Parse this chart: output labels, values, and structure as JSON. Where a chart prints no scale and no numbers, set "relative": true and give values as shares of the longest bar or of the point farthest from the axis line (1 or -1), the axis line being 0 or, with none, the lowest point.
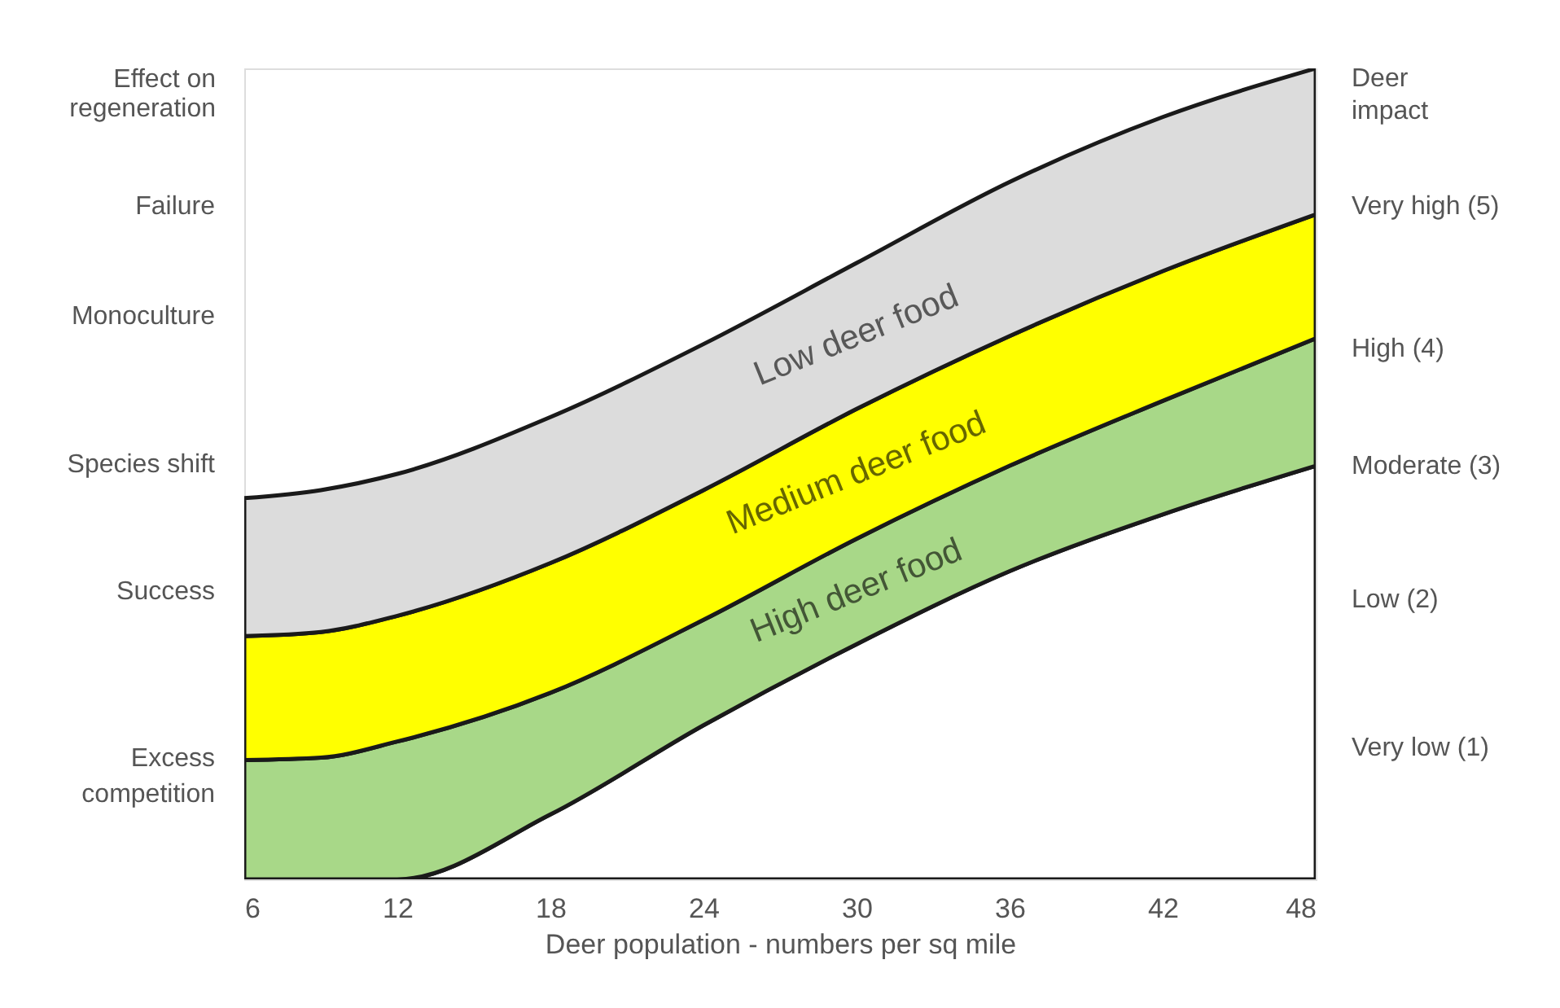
{
  "chart_data": {
    "type": "area",
    "stacked": true,
    "relative": true,
    "xlabel": "Deer population - numbers per sq mile",
    "ylabel": "Effect on\nregeneration",
    "y2label": "Deer\nimpact",
    "x": [
      6,
      9,
      12,
      18,
      24,
      30,
      36,
      42,
      48
    ],
    "series": [
      {
        "color": "#ffffff",
        "values": [
          0,
          0,
          0,
          0.08,
          0.19,
          0.29,
          0.38,
          0.45,
          0.51
        ]
      },
      {
        "name": "High deer food",
        "color": "#a8d888",
        "values": [
          0.147,
          0.15,
          0.17,
          0.15,
          0.13,
          0.13,
          0.13,
          0.14,
          0.157
        ]
      },
      {
        "name": "Medium deer food",
        "color": "#ffff00",
        "values": [
          0.153,
          0.155,
          0.155,
          0.16,
          0.16,
          0.16,
          0.16,
          0.16,
          0.153
        ]
      },
      {
        "name": "Low deer food",
        "color": "#dcdcdc",
        "values": [
          0.17,
          0.175,
          0.175,
          0.18,
          0.18,
          0.18,
          0.19,
          0.19,
          0.18
        ]
      }
    ],
    "xlim": [
      6,
      48
    ],
    "xticks": [
      6,
      12,
      18,
      24,
      30,
      36,
      42,
      48
    ],
    "annotations": [
      "Failure",
      "Monoculture",
      "Species shift",
      "Success",
      "Excess\ncompetition",
      "Very high (5)",
      "High (4)",
      "Moderate (3)",
      "Low (2)",
      "Very low (1)"
    ],
    "grid": false,
    "legend": false
  }
}
